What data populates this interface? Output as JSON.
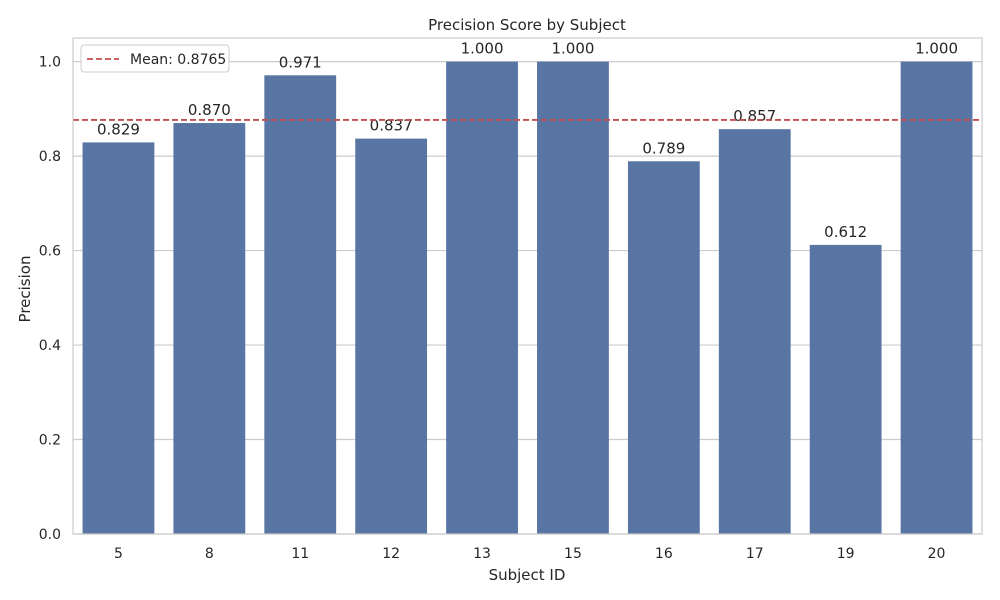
{
  "chart_data": {
    "type": "bar",
    "title": "Precision Score by Subject",
    "xlabel": "Subject ID",
    "ylabel": "Precision",
    "categories": [
      "5",
      "8",
      "11",
      "12",
      "13",
      "15",
      "16",
      "17",
      "19",
      "20"
    ],
    "values": [
      0.829,
      0.87,
      0.971,
      0.837,
      1.0,
      1.0,
      0.789,
      0.857,
      0.612,
      1.0
    ],
    "value_labels": [
      "0.829",
      "0.870",
      "0.971",
      "0.837",
      "1.000",
      "1.000",
      "0.789",
      "0.857",
      "0.612",
      "1.000"
    ],
    "ylim": [
      0,
      1.05
    ],
    "yticks": [
      0.0,
      0.2,
      0.4,
      0.6,
      0.8,
      1.0
    ],
    "ytick_labels": [
      "0.0",
      "0.2",
      "0.4",
      "0.6",
      "0.8",
      "1.0"
    ],
    "mean_line": {
      "value": 0.8765,
      "label": "Mean: 0.8765",
      "style": "dashed"
    },
    "legend": {
      "placement": "upper-left",
      "entries": [
        "Mean: 0.8765"
      ]
    },
    "grid": {
      "y": true,
      "x": false
    },
    "colors": {
      "bar": "#5975a4",
      "mean_line": "#c44e52",
      "grid": "#cccccc",
      "frame": "#cccccc"
    }
  }
}
